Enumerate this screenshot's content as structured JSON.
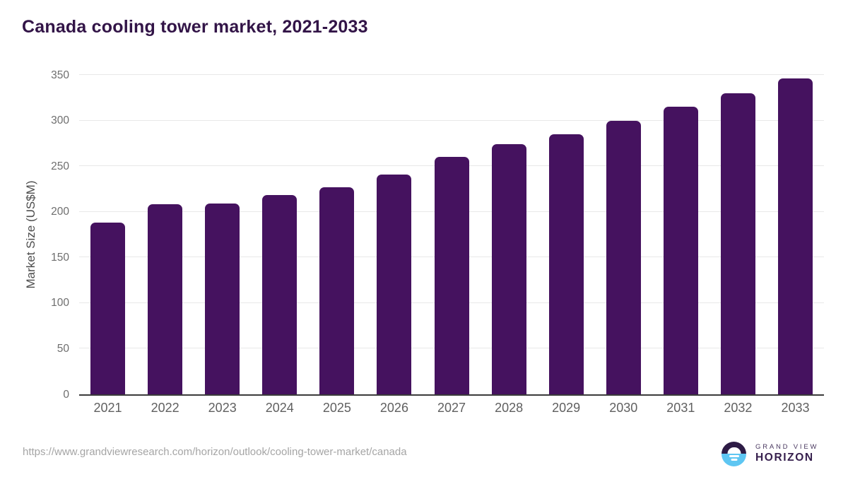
{
  "title": "Canada cooling tower market, 2021-2033",
  "chart_data": {
    "type": "bar",
    "title": "Canada cooling tower market, 2021-2033",
    "categories": [
      "2021",
      "2022",
      "2023",
      "2024",
      "2025",
      "2026",
      "2027",
      "2028",
      "2029",
      "2030",
      "2031",
      "2032",
      "2033"
    ],
    "values": [
      188,
      208,
      209,
      218,
      227,
      241,
      260,
      274,
      285,
      300,
      315,
      330,
      346
    ],
    "xlabel": "",
    "ylabel": "Market Size (US$M)",
    "ylim": [
      0,
      350
    ],
    "yticks": [
      0,
      50,
      100,
      150,
      200,
      250,
      300,
      350
    ],
    "grid": "horizontal-only",
    "legend": "none",
    "bar_color": "#45125f"
  },
  "footer": {
    "source_url": "https://www.grandviewresearch.com/horizon/outlook/cooling-tower-market/canada",
    "brand": {
      "line1": "GRAND VIEW",
      "line2": "HORIZON"
    }
  },
  "colors": {
    "bar": "#45125f",
    "title_text": "#321447",
    "axis_line": "#3b3b3b",
    "gridline": "#e8e8e8",
    "y_tick_label": "#6e6e6e",
    "x_tick_label": "#606060",
    "url_text": "#a5a5a5",
    "logo_purple": "#2d1b45",
    "logo_blue": "#5ec6f2"
  }
}
